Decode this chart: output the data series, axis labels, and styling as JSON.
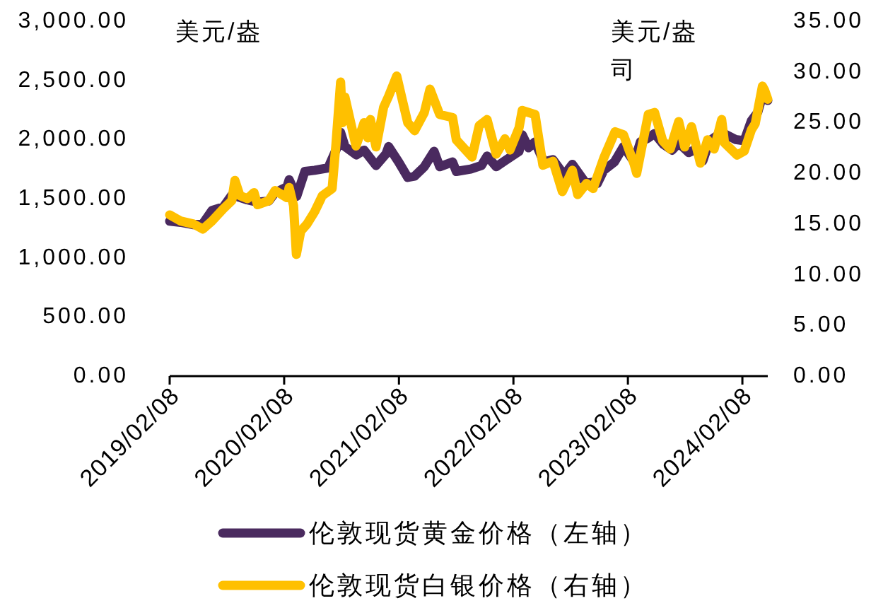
{
  "chart_data": {
    "type": "line",
    "ylabel": "美元/盎",
    "y2label": "美元/盎司",
    "legend": "bottom",
    "line_style": "solid",
    "xlim": [
      "2019-02-08",
      "2024-04-29"
    ],
    "xticks": [
      {
        "value": "2019-02-08",
        "label": "2019/02/08"
      },
      {
        "value": "2020-02-08",
        "label": "2020/02/08"
      },
      {
        "value": "2021-02-08",
        "label": "2021/02/08"
      },
      {
        "value": "2022-02-08",
        "label": "2022/02/08"
      },
      {
        "value": "2023-02-08",
        "label": "2023/02/08"
      },
      {
        "value": "2024-02-08",
        "label": "2024/02/08"
      }
    ],
    "ylim": [
      0,
      3000
    ],
    "yticks": [
      {
        "value": 0,
        "label": "0.00"
      },
      {
        "value": 500,
        "label": "500.00"
      },
      {
        "value": 1000,
        "label": "1,000.00"
      },
      {
        "value": 1500,
        "label": "1,500.00"
      },
      {
        "value": 2000,
        "label": "2,000.00"
      },
      {
        "value": 2500,
        "label": "2,500.00"
      },
      {
        "value": 3000,
        "label": "3,000.00"
      }
    ],
    "y2lim": [
      0,
      35
    ],
    "y2ticks": [
      {
        "value": 0,
        "label": "0.00"
      },
      {
        "value": 5,
        "label": "5.00"
      },
      {
        "value": 10,
        "label": "10.00"
      },
      {
        "value": 15,
        "label": "15.00"
      },
      {
        "value": 20,
        "label": "20.00"
      },
      {
        "value": 25,
        "label": "25.00"
      },
      {
        "value": 30,
        "label": "30.00"
      },
      {
        "value": 35,
        "label": "35.00"
      }
    ],
    "series": [
      {
        "name": "伦敦现货黄金价格（左轴）",
        "color": "#4a2a5f",
        "x": [
          "2019-02-08",
          "2019-03-15",
          "2019-04-25",
          "2019-05-25",
          "2019-06-23",
          "2019-07-29",
          "2019-08-25",
          "2019-09-20",
          "2019-10-14",
          "2019-11-15",
          "2019-12-21",
          "2020-01-10",
          "2020-02-17",
          "2020-02-24",
          "2020-03-19",
          "2020-04-14",
          "2020-05-15",
          "2020-06-27",
          "2020-07-27",
          "2020-08-06",
          "2020-08-20",
          "2020-09-25",
          "2020-10-20",
          "2020-11-27",
          "2020-12-29",
          "2021-01-06",
          "2021-02-07",
          "2021-03-08",
          "2021-03-30",
          "2021-04-30",
          "2021-05-31",
          "2021-06-18",
          "2021-07-29",
          "2021-08-10",
          "2021-09-25",
          "2021-10-29",
          "2021-11-16",
          "2021-12-15",
          "2022-01-12",
          "2022-02-26",
          "2022-03-08",
          "2022-03-28",
          "2022-04-18",
          "2022-05-16",
          "2022-06-14",
          "2022-07-20",
          "2022-08-15",
          "2022-09-27",
          "2022-10-20",
          "2022-11-03",
          "2022-11-23",
          "2022-12-27",
          "2023-01-25",
          "2023-02-28",
          "2023-03-20",
          "2023-04-12",
          "2023-05-04",
          "2023-06-01",
          "2023-06-29",
          "2023-07-20",
          "2023-08-21",
          "2023-09-15",
          "2023-10-05",
          "2023-10-27",
          "2023-12-04",
          "2024-01-17",
          "2024-02-14",
          "2024-03-08",
          "2024-03-28",
          "2024-04-12",
          "2024-04-29"
        ],
        "values": [
          1310,
          1300,
          1280,
          1290,
          1400,
          1430,
          1530,
          1510,
          1490,
          1470,
          1480,
          1550,
          1600,
          1660,
          1520,
          1730,
          1740,
          1760,
          1940,
          2060,
          1940,
          1870,
          1910,
          1780,
          1880,
          1940,
          1810,
          1680,
          1690,
          1770,
          1900,
          1770,
          1810,
          1730,
          1750,
          1780,
          1860,
          1770,
          1820,
          1900,
          2040,
          1930,
          1980,
          1810,
          1830,
          1700,
          1790,
          1630,
          1640,
          1630,
          1740,
          1810,
          1940,
          1810,
          1980,
          2010,
          2050,
          1960,
          1910,
          1970,
          1890,
          1920,
          1820,
          1990,
          2060,
          2000,
          1990,
          2160,
          2230,
          2370,
          2330
        ]
      },
      {
        "name": "伦敦现货白银价格（右轴）",
        "color": "#ffc000",
        "axis": "y2",
        "x": [
          "2019-02-08",
          "2019-03-15",
          "2019-04-25",
          "2019-05-25",
          "2019-06-23",
          "2019-07-29",
          "2019-08-25",
          "2019-09-04",
          "2019-09-20",
          "2019-10-14",
          "2019-11-04",
          "2019-11-15",
          "2019-12-21",
          "2020-01-10",
          "2020-02-17",
          "2020-02-24",
          "2020-03-09",
          "2020-03-18",
          "2020-04-01",
          "2020-04-21",
          "2020-05-15",
          "2020-06-09",
          "2020-07-10",
          "2020-07-22",
          "2020-08-06",
          "2020-08-12",
          "2020-08-20",
          "2020-09-24",
          "2020-10-20",
          "2020-11-01",
          "2020-11-09",
          "2020-11-27",
          "2020-12-21",
          "2021-01-06",
          "2021-02-01",
          "2021-02-19",
          "2021-03-08",
          "2021-03-30",
          "2021-04-30",
          "2021-05-18",
          "2021-06-18",
          "2021-07-29",
          "2021-08-10",
          "2021-09-29",
          "2021-10-22",
          "2021-11-16",
          "2021-12-15",
          "2022-01-12",
          "2022-01-28",
          "2022-02-26",
          "2022-03-08",
          "2022-04-18",
          "2022-05-13",
          "2022-06-14",
          "2022-07-14",
          "2022-08-15",
          "2022-09-01",
          "2022-09-29",
          "2022-10-20",
          "2022-11-23",
          "2022-12-29",
          "2023-01-25",
          "2023-02-28",
          "2023-03-08",
          "2023-04-14",
          "2023-05-04",
          "2023-05-30",
          "2023-06-23",
          "2023-07-20",
          "2023-08-08",
          "2023-08-30",
          "2023-09-27",
          "2023-10-20",
          "2023-11-10",
          "2023-12-04",
          "2023-12-13",
          "2024-01-22",
          "2024-02-14",
          "2024-03-08",
          "2024-03-20",
          "2024-04-12",
          "2024-04-19",
          "2024-04-29"
        ],
        "values": [
          15.9,
          15.3,
          15.0,
          14.5,
          15.3,
          16.5,
          17.3,
          19.3,
          17.8,
          17.5,
          18.1,
          16.9,
          17.3,
          18.3,
          17.6,
          18.6,
          16.8,
          12.0,
          14.3,
          15.0,
          16.2,
          17.8,
          18.5,
          22.8,
          29.0,
          25.0,
          27.5,
          22.7,
          25.0,
          23.5,
          25.3,
          22.6,
          26.5,
          27.6,
          29.6,
          27.2,
          25.0,
          24.2,
          26.0,
          28.3,
          25.8,
          25.5,
          23.3,
          21.6,
          24.7,
          25.3,
          21.9,
          23.4,
          22.3,
          24.5,
          26.2,
          25.8,
          20.8,
          21.2,
          18.2,
          20.3,
          17.9,
          19.0,
          18.5,
          21.5,
          24.1,
          23.8,
          20.9,
          20.0,
          25.8,
          26.0,
          23.2,
          22.4,
          25.1,
          22.6,
          24.6,
          21.0,
          23.3,
          22.4,
          25.3,
          23.0,
          21.8,
          22.2,
          24.3,
          24.9,
          28.6,
          28.2,
          27.3
        ]
      }
    ]
  }
}
